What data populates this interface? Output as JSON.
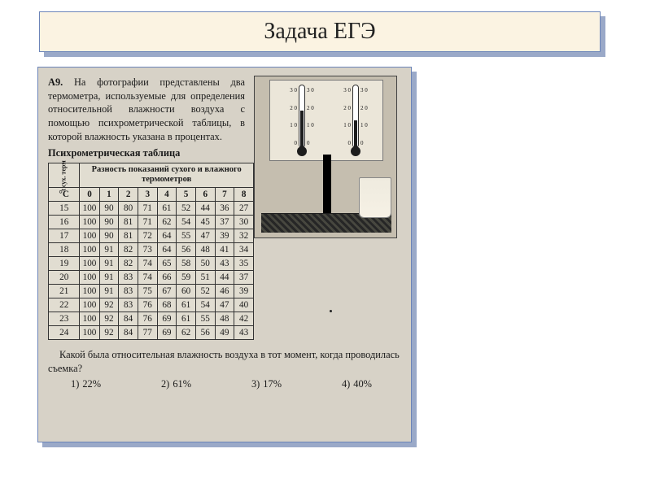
{
  "title": "Задача ЕГЭ",
  "problem": {
    "label": "А9.",
    "intro": "На фотографии представлены два термометра, используемые для определения относительной влажности воздуха с помощью психрометрической таблицы, в которой влажность указана в процентах.",
    "table_heading": "Психрометрическая таблица",
    "y_axis_label": "t сух. терм",
    "y_axis_unit": "°C",
    "diff_header": "Разность показаний сухого и влажного термометров",
    "diff_columns": [
      "0",
      "1",
      "2",
      "3",
      "4",
      "5",
      "6",
      "7",
      "8"
    ],
    "temps": [
      "15",
      "16",
      "17",
      "18",
      "19",
      "20",
      "21",
      "22",
      "23",
      "24"
    ],
    "rows": [
      [
        "100",
        "90",
        "80",
        "71",
        "61",
        "52",
        "44",
        "36",
        "27"
      ],
      [
        "100",
        "90",
        "81",
        "71",
        "62",
        "54",
        "45",
        "37",
        "30"
      ],
      [
        "100",
        "90",
        "81",
        "72",
        "64",
        "55",
        "47",
        "39",
        "32"
      ],
      [
        "100",
        "91",
        "82",
        "73",
        "64",
        "56",
        "48",
        "41",
        "34"
      ],
      [
        "100",
        "91",
        "82",
        "74",
        "65",
        "58",
        "50",
        "43",
        "35"
      ],
      [
        "100",
        "91",
        "83",
        "74",
        "66",
        "59",
        "51",
        "44",
        "37"
      ],
      [
        "100",
        "91",
        "83",
        "75",
        "67",
        "60",
        "52",
        "46",
        "39"
      ],
      [
        "100",
        "92",
        "83",
        "76",
        "68",
        "61",
        "54",
        "47",
        "40"
      ],
      [
        "100",
        "92",
        "84",
        "76",
        "69",
        "61",
        "55",
        "48",
        "42"
      ],
      [
        "100",
        "92",
        "84",
        "77",
        "69",
        "62",
        "56",
        "49",
        "43"
      ]
    ],
    "thermo_marks": [
      "3 0",
      "2 0",
      "1 0",
      "0"
    ],
    "question": "Какой была относительная влажность воздуха в тот момент, когда проводилась съемка?",
    "options": [
      {
        "n": "1)",
        "v": "22%"
      },
      {
        "n": "2)",
        "v": "61%"
      },
      {
        "n": "3)",
        "v": "17%"
      },
      {
        "n": "4)",
        "v": "40%"
      }
    ]
  },
  "colors": {
    "title_bg": "#fbf3e2",
    "frame_border": "#6b84b8",
    "shadow": "#9aa9c8",
    "scan_bg": "#d7d2c7"
  }
}
